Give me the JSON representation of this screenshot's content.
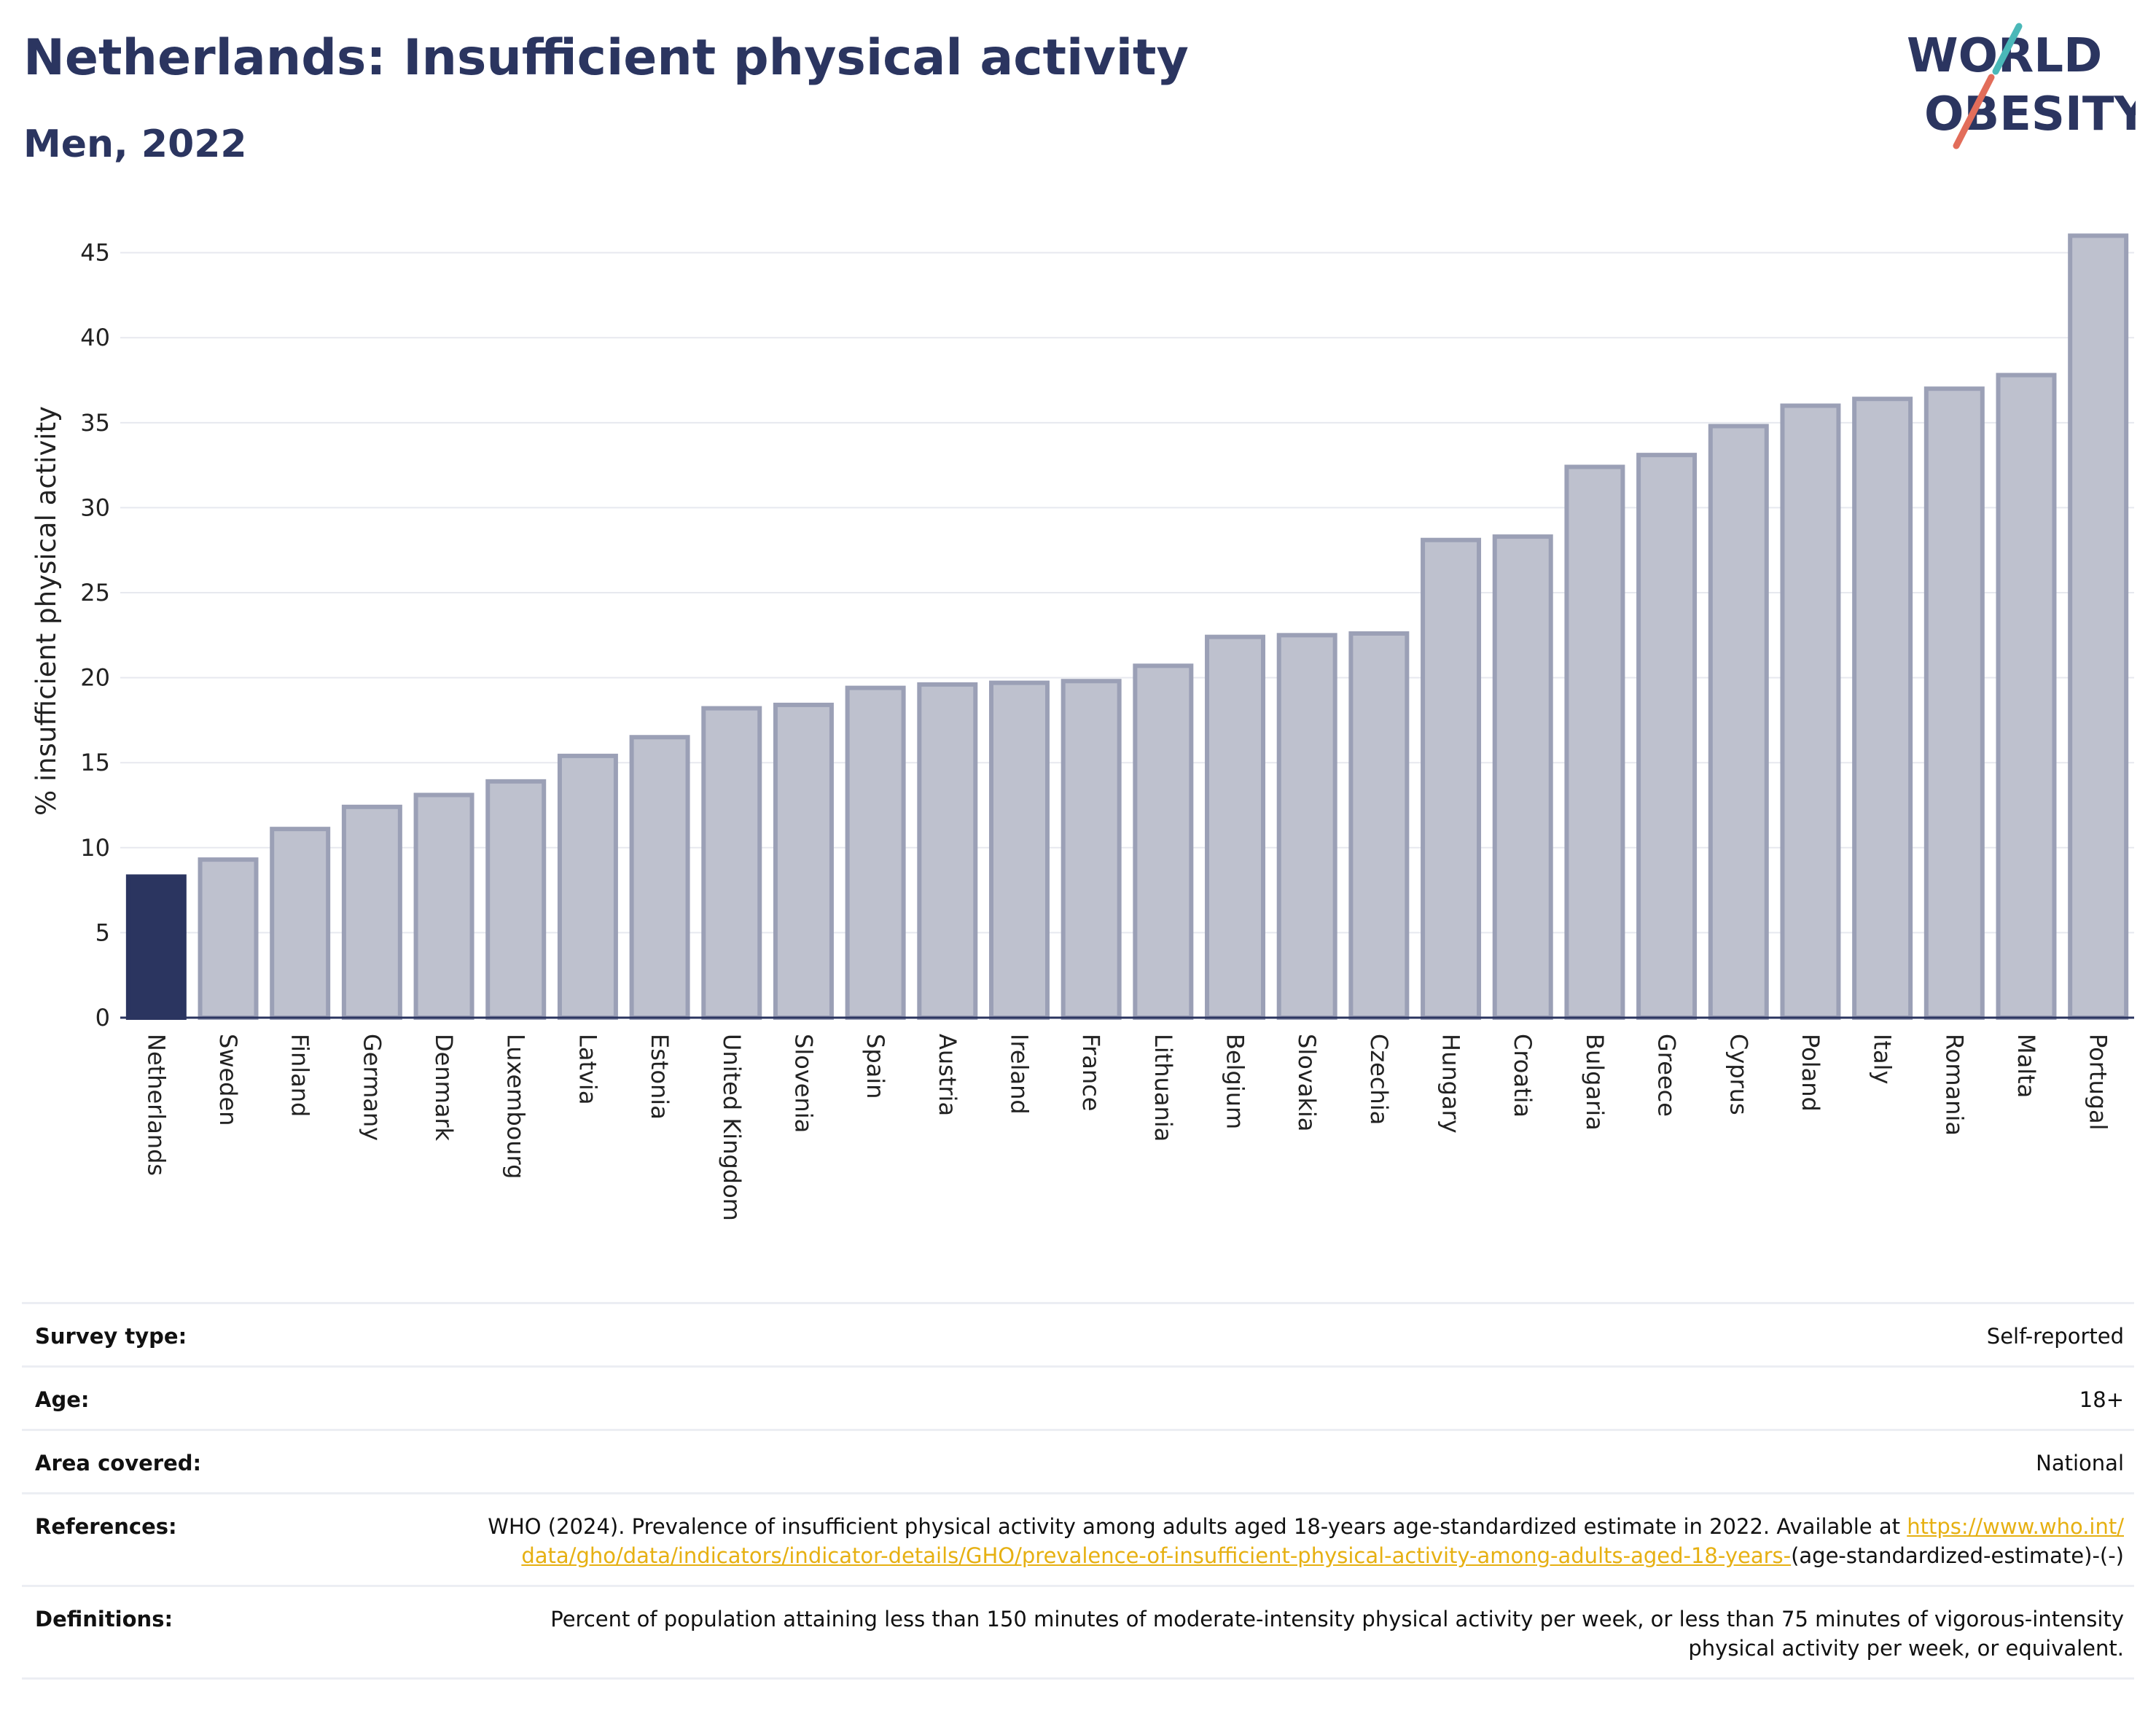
{
  "header": {
    "title": "Netherlands: Insufficient physical activity",
    "subtitle": "Men, 2022"
  },
  "logo": {
    "line1": "WORLD",
    "line2": "OBESITY"
  },
  "colors": {
    "highlight": "#2b3560",
    "bar_fill": "#bec1ce",
    "bar_stroke": "#9ba0b6",
    "accent_teal": "#4ab8b8",
    "accent_coral": "#e26d5a",
    "link": "#e6b012"
  },
  "chart_data": {
    "type": "bar",
    "ylabel": "% insufficient physical activity",
    "xlabel": "",
    "ylim": [
      0,
      47
    ],
    "yticks": [
      0,
      5,
      10,
      15,
      20,
      25,
      30,
      35,
      40,
      45
    ],
    "grid": true,
    "highlight_category": "Netherlands",
    "categories": [
      "Netherlands",
      "Sweden",
      "Finland",
      "Germany",
      "Denmark",
      "Luxembourg",
      "Latvia",
      "Estonia",
      "United Kingdom",
      "Slovenia",
      "Spain",
      "Austria",
      "Ireland",
      "France",
      "Lithuania",
      "Belgium",
      "Slovakia",
      "Czechia",
      "Hungary",
      "Croatia",
      "Bulgaria",
      "Greece",
      "Cyprus",
      "Poland",
      "Italy",
      "Romania",
      "Malta",
      "Portugal"
    ],
    "values": [
      8.3,
      9.3,
      11.1,
      12.4,
      13.1,
      13.9,
      15.4,
      16.5,
      18.2,
      18.4,
      19.4,
      19.6,
      19.7,
      19.8,
      20.7,
      22.4,
      22.5,
      22.6,
      28.1,
      28.3,
      32.4,
      33.1,
      34.8,
      36.0,
      36.4,
      37.0,
      37.8,
      46.0
    ]
  },
  "info": {
    "survey_type_label": "Survey type:",
    "survey_type_value": "Self-reported",
    "age_label": "Age:",
    "age_value": "18+",
    "area_label": "Area covered:",
    "area_value": "National",
    "references_label": "References:",
    "references_text": "WHO (2024). Prevalence of insufficient physical activity among adults aged 18-years age-standardized estimate in 2022. Available at",
    "references_link": "https://www.who.int/data/gho/data/indicators/indicator-details/GHO/prevalence-of-insufficient-physical-activity-among-adults-aged-18-years-",
    "references_suffix": "(age-standardized-estimate)-(-)",
    "definitions_label": "Definitions:",
    "definitions_text": "Percent of population attaining less than 150 minutes of moderate-intensity physical activity per week, or less than 75 minutes of vigorous-intensity physical activity per week, or equivalent."
  }
}
